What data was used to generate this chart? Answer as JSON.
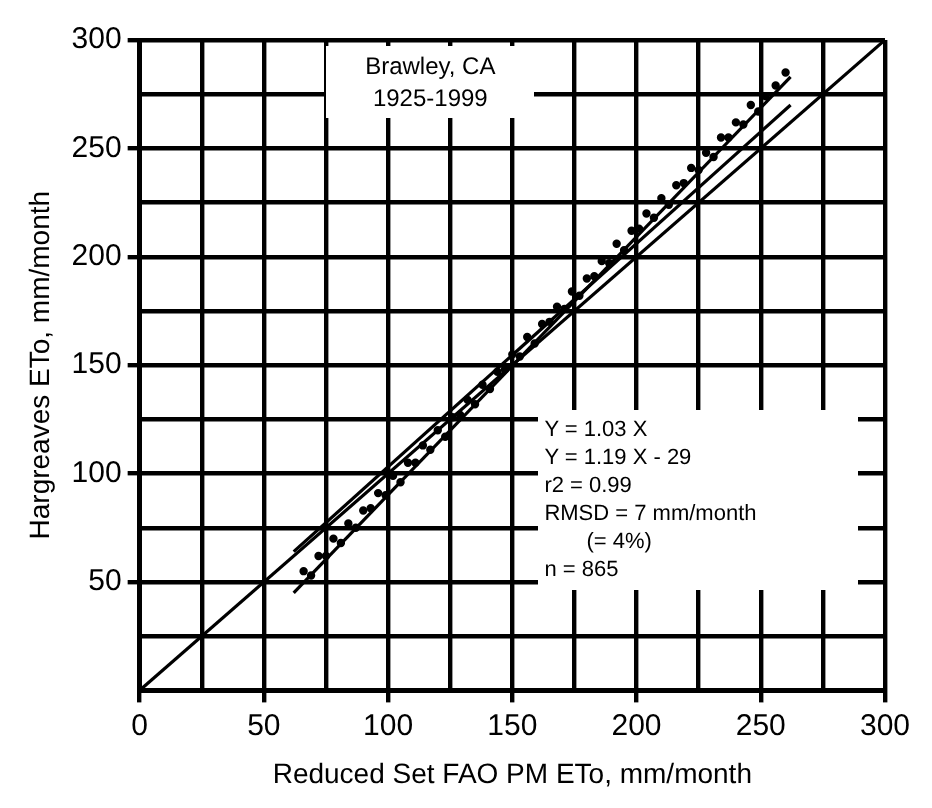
{
  "chart_data": {
    "type": "scatter",
    "xlabel": "Reduced Set FAO PM ETo, mm/month",
    "ylabel": "Hargreaves ETo, mm/month",
    "annotations": [
      "Brawley, CA",
      "1925-1999",
      "Y = 1.03 X",
      "Y = 1.19 X - 29",
      "r2 = 0.99",
      "RMSD = 7 mm/month",
      "(= 4%)",
      "n = 865"
    ],
    "xlim": [
      0,
      300
    ],
    "ylim": [
      0,
      300
    ],
    "xticks": [
      0,
      {
        "value": 25,
        "label": null
      },
      50,
      {
        "value": 75,
        "label": null
      },
      100,
      {
        "value": 125,
        "label": null
      },
      150,
      {
        "value": 175,
        "label": null
      },
      200,
      {
        "value": 225,
        "label": null
      },
      250,
      {
        "value": 275,
        "label": null
      },
      300
    ],
    "yticks": [
      {
        "value": 0,
        "label": null
      },
      {
        "value": 25,
        "label": null
      },
      50,
      {
        "value": 75,
        "label": null
      },
      100,
      {
        "value": 125,
        "label": null
      },
      150,
      {
        "value": 175,
        "label": null
      },
      200,
      {
        "value": 225,
        "label": null
      },
      250,
      {
        "value": 275,
        "label": null
      },
      300
    ],
    "grid": true,
    "legend": false,
    "series": [
      {
        "marker": "circle",
        "color": "#000000",
        "x": [
          66,
          69,
          72,
          75,
          78,
          81,
          84,
          87,
          90,
          93,
          96,
          99,
          102,
          105,
          108,
          111,
          114,
          117,
          120,
          123,
          126,
          129,
          132,
          135,
          138,
          141,
          144,
          147,
          150,
          153,
          156,
          159,
          162,
          165,
          168,
          171,
          174,
          177,
          180,
          183,
          186,
          189,
          192,
          195,
          198,
          201,
          204,
          207,
          210,
          213,
          216,
          219,
          222,
          225,
          228,
          231,
          234,
          237,
          240,
          243,
          246,
          249,
          252,
          256,
          260
        ],
        "values": [
          55,
          53,
          62,
          62,
          70,
          68,
          77,
          75,
          83,
          84,
          91,
          90,
          99,
          96,
          105,
          105,
          113,
          111,
          120,
          117,
          126,
          127,
          134,
          132,
          141,
          139,
          147,
          148,
          155,
          154,
          163,
          160,
          169,
          170,
          177,
          176,
          184,
          182,
          190,
          191,
          198,
          197,
          206,
          203,
          212,
          213,
          220,
          218,
          227,
          224,
          233,
          234,
          241,
          240,
          248,
          246,
          255,
          255,
          262,
          261,
          270,
          267,
          274,
          279,
          285
        ]
      },
      {
        "type": "line",
        "color": "#000000",
        "x": [
          0,
          300
        ],
        "values": [
          0,
          300
        ]
      },
      {
        "type": "line",
        "color": "#000000",
        "x": [
          62,
          262
        ],
        "values": [
          64,
          270
        ]
      },
      {
        "type": "line",
        "color": "#000000",
        "x": [
          62,
          262
        ],
        "values": [
          45,
          283
        ]
      }
    ]
  }
}
